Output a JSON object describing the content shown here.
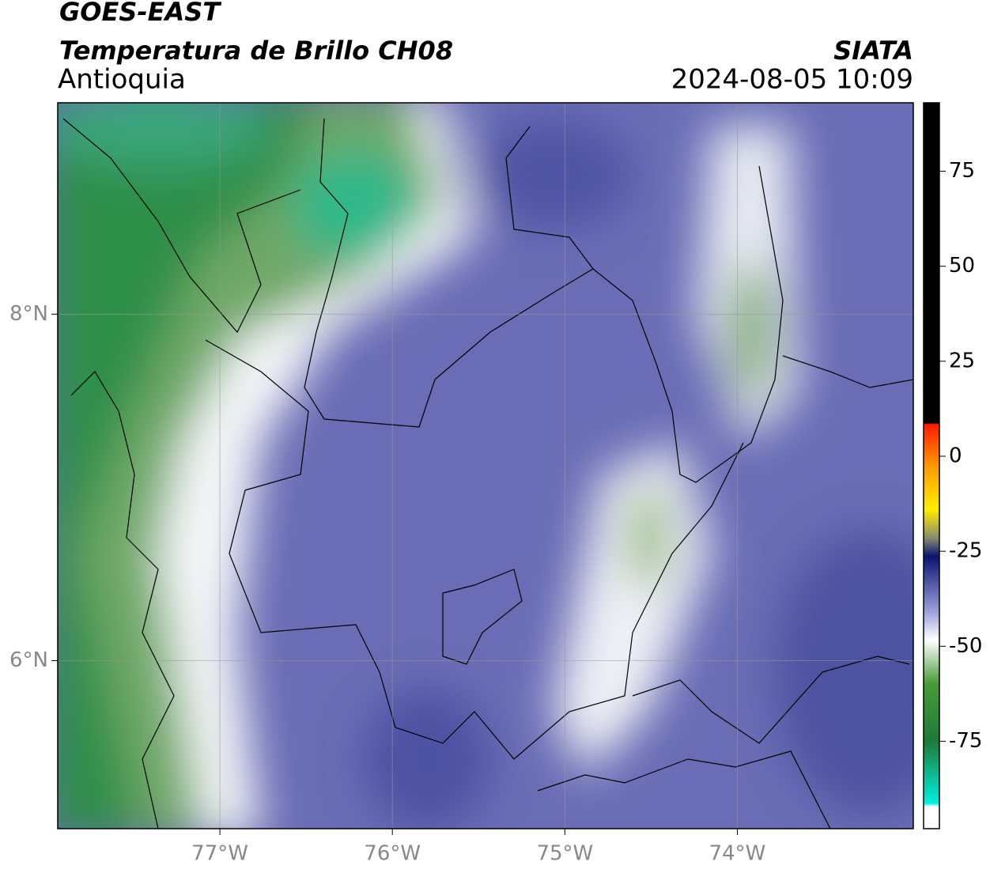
{
  "header": {
    "title": "GOES-EAST",
    "subtitle": "Temperatura de Brillo CH08",
    "region": "Antioquia",
    "source": "SIATA",
    "datetime": "2024-08-05 10:09"
  },
  "map": {
    "xlim": [
      -77.94,
      -72.98
    ],
    "ylim": [
      5.03,
      9.22
    ],
    "xticks": [
      {
        "value": -77,
        "label": "77°W"
      },
      {
        "value": -76,
        "label": "76°W"
      },
      {
        "value": -75,
        "label": "75°W"
      },
      {
        "value": -74,
        "label": "74°W"
      }
    ],
    "yticks": [
      {
        "value": 8,
        "label": "8°N"
      },
      {
        "value": 6,
        "label": "6°N"
      }
    ],
    "grid": true
  },
  "colorbar": {
    "lim": [
      -98,
      93
    ],
    "ticks": [
      75,
      50,
      25,
      0,
      -25,
      -50,
      -75
    ]
  }
}
